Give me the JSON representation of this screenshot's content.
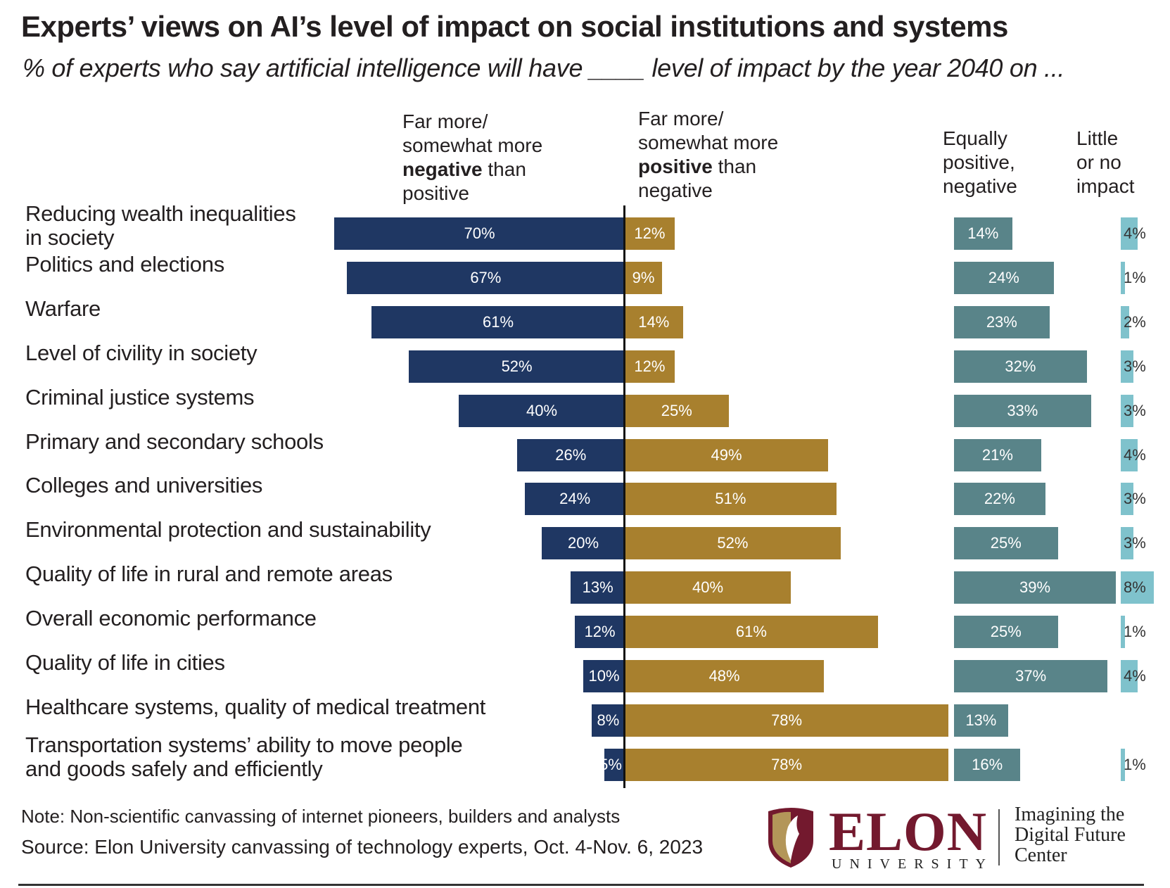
{
  "title": "Experts’ views on AI’s level of impact on social institutions and systems",
  "subtitle": "% of experts who say artificial intelligence will have ____ level of impact by the year 2040 on ...",
  "column_headers": {
    "negative": [
      "Far more/",
      "somewhat more",
      "negative",
      " than",
      "positive"
    ],
    "positive": [
      "Far more/",
      "somewhat more",
      "positive",
      " than",
      "negative"
    ],
    "equal": [
      "Equally",
      "positive,",
      "negative"
    ],
    "little": [
      "Little",
      "or no",
      "impact"
    ]
  },
  "chart_data": {
    "type": "bar",
    "orientation": "horizontal",
    "stacking": "diverging",
    "categories": [
      [
        "Reducing wealth inequalities",
        "in society"
      ],
      [
        "Politics and elections"
      ],
      [
        "Warfare"
      ],
      [
        "Level of civility in society"
      ],
      [
        "Criminal justice systems"
      ],
      [
        "Primary and secondary schools"
      ],
      [
        "Colleges and universities"
      ],
      [
        "Environmental protection and sustainability"
      ],
      [
        "Quality of life in rural and remote areas"
      ],
      [
        "Overall economic performance"
      ],
      [
        "Quality of life in cities"
      ],
      [
        "Healthcare systems, quality of medical treatment"
      ],
      [
        "Transportation systems’ ability to move people",
        "and goods safely and efficiently"
      ]
    ],
    "series": [
      {
        "name": "Far more/somewhat more negative than positive",
        "color": "#1f3763",
        "values": [
          70,
          67,
          61,
          52,
          40,
          26,
          24,
          20,
          13,
          12,
          10,
          8,
          5
        ]
      },
      {
        "name": "Far more/somewhat more positive than negative",
        "color": "#a8802e",
        "values": [
          12,
          9,
          14,
          12,
          25,
          49,
          51,
          52,
          40,
          61,
          48,
          78,
          78
        ]
      },
      {
        "name": "Equally positive, negative",
        "color": "#598489",
        "values": [
          14,
          24,
          23,
          32,
          33,
          21,
          22,
          25,
          39,
          25,
          37,
          13,
          16
        ]
      },
      {
        "name": "Little or no impact",
        "color": "#7fc2cc",
        "values": [
          4,
          1,
          2,
          3,
          3,
          4,
          3,
          3,
          8,
          1,
          4,
          null,
          1
        ]
      }
    ],
    "value_suffix": "%",
    "grid": false,
    "legend": "column headers at top"
  },
  "footer": {
    "note": "Note: Non-scientific canvassing of internet pioneers, builders and analysts",
    "source": "Source: Elon University canvassing of technology experts, Oct. 4-Nov. 6, 2023"
  },
  "logo": {
    "wordmark": "ELON",
    "sub": "UNIVERSITY",
    "center": [
      "Imagining the",
      "Digital Future",
      "Center"
    ],
    "colors": {
      "maroon": "#73192e",
      "gold": "#b39659"
    }
  }
}
